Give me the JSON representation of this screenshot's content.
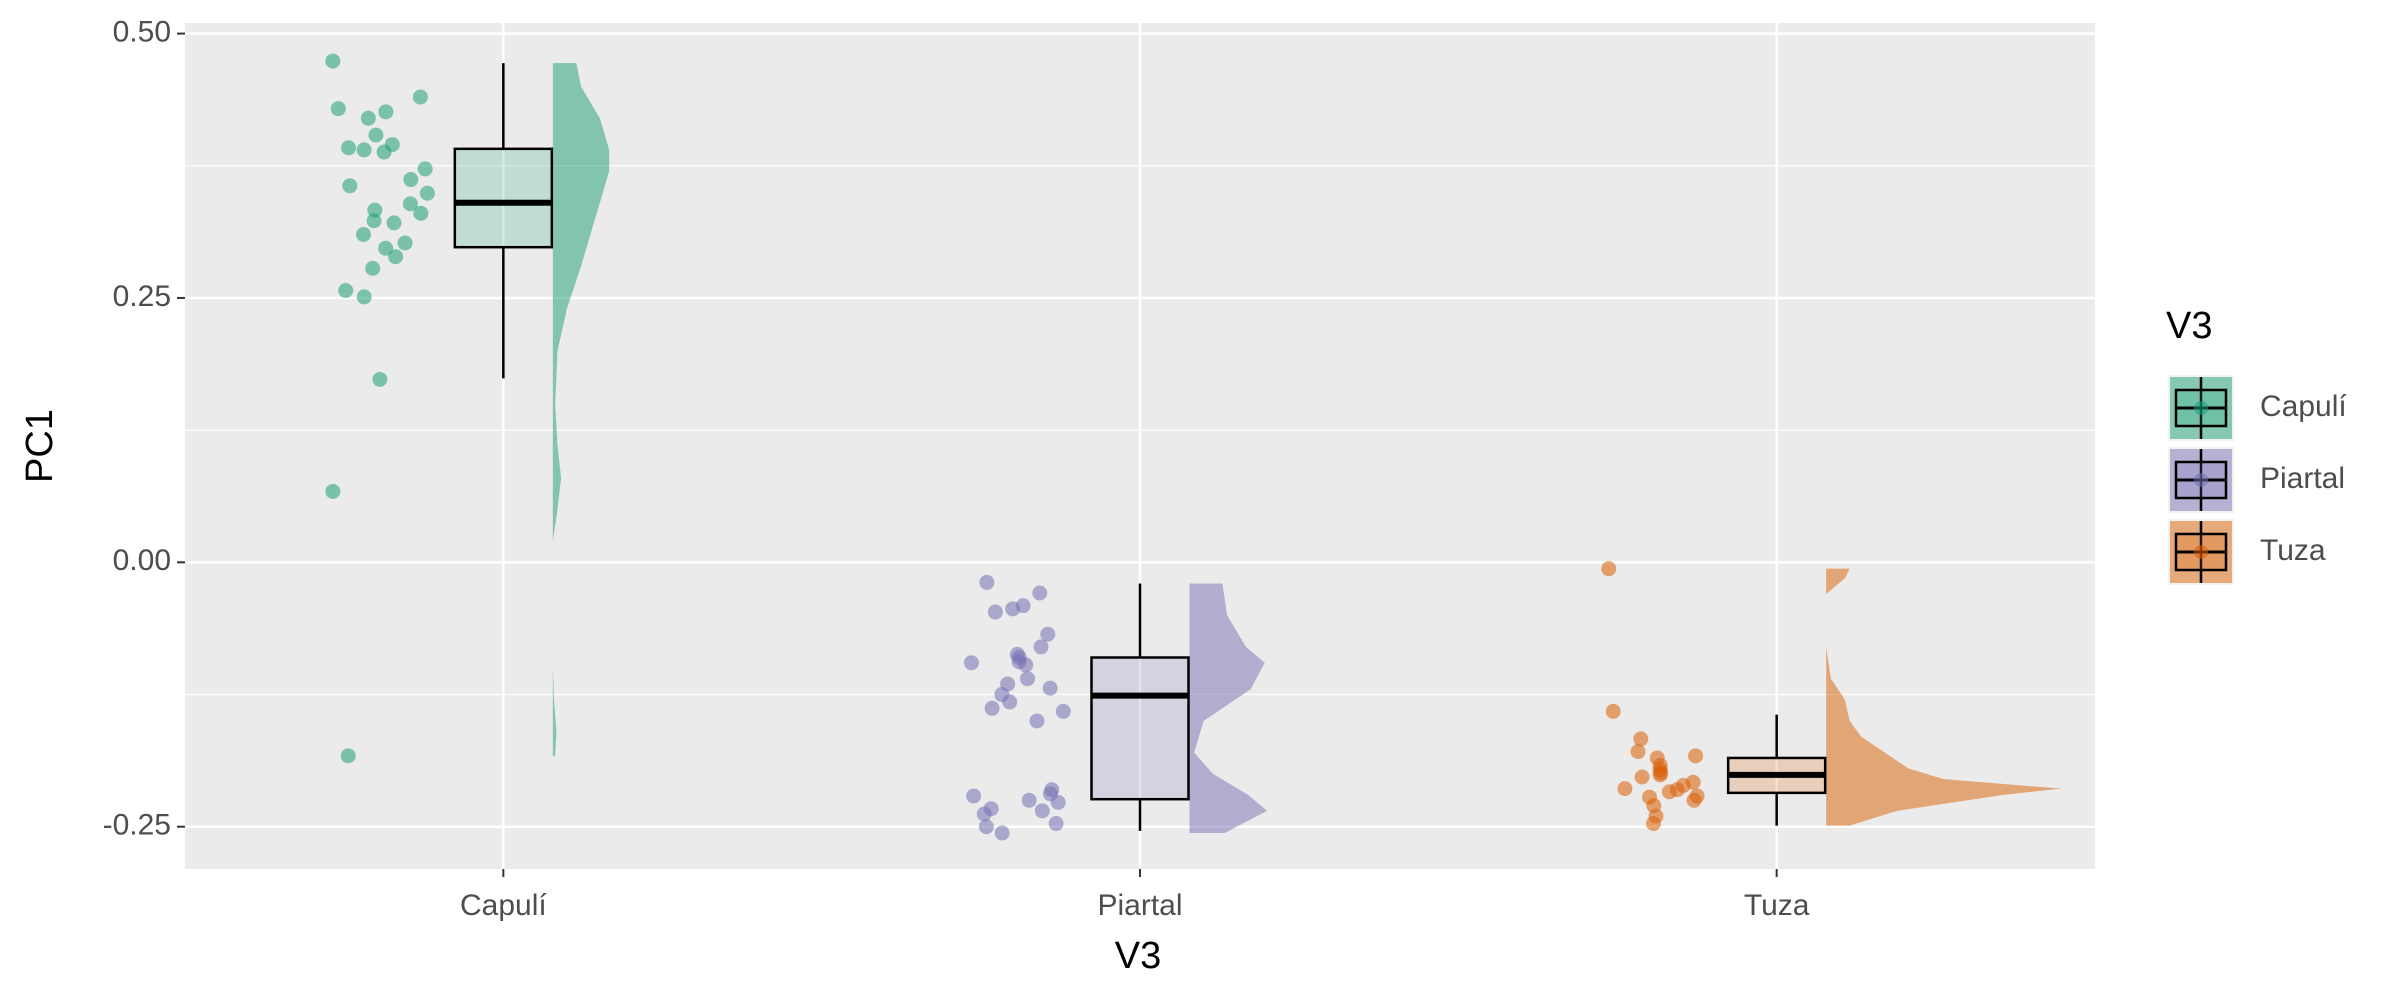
{
  "chart_data": {
    "type": "raincloud",
    "x_label": "V3",
    "y_label": "PC1",
    "legend_title": "V3",
    "legend_position": "right",
    "grid": true,
    "categories": [
      "Capulí",
      "Piartal",
      "Tuza"
    ],
    "ylim": [
      -0.29,
      0.51
    ],
    "yticks": [
      {
        "value": 0.5,
        "label": "0.50"
      },
      0.25,
      {
        "value": 0,
        "label": "0.00"
      },
      -0.25
    ],
    "y_minor_ticks": [
      0.375,
      0.125,
      -0.125
    ],
    "series": [
      {
        "name": "Capulí",
        "color": "#1B9E77",
        "points": [
          0.474,
          0.44,
          0.429,
          0.426,
          0.42,
          0.404,
          0.395,
          0.392,
          0.39,
          0.388,
          0.372,
          0.362,
          0.356,
          0.349,
          0.339,
          0.333,
          0.33,
          0.323,
          0.321,
          0.31,
          0.302,
          0.297,
          0.289,
          0.278,
          0.257,
          0.251,
          0.173,
          0.067,
          -0.183
        ],
        "box": {
          "min": 0.174,
          "q1": 0.298,
          "median": 0.34,
          "q3": 0.391,
          "max": 0.472
        },
        "density": {
          "y": [
            -0.183,
            -0.16,
            -0.13,
            -0.1,
            0.02,
            0.05,
            0.08,
            0.11,
            0.15,
            0.2,
            0.24,
            0.28,
            0.31,
            0.34,
            0.37,
            0.39,
            0.42,
            0.45,
            0.472
          ],
          "width": [
            0.01,
            0.015,
            0.005,
            0,
            0,
            0.02,
            0.035,
            0.02,
            0.01,
            0.02,
            0.06,
            0.12,
            0.16,
            0.2,
            0.24,
            0.24,
            0.2,
            0.12,
            0.1
          ]
        }
      },
      {
        "name": "Piartal",
        "color": "#7570B3",
        "points": [
          -0.019,
          -0.029,
          -0.041,
          -0.044,
          -0.047,
          -0.068,
          -0.08,
          -0.087,
          -0.09,
          -0.094,
          -0.095,
          -0.097,
          -0.11,
          -0.115,
          -0.119,
          -0.125,
          -0.132,
          -0.138,
          -0.141,
          -0.15,
          -0.215,
          -0.219,
          -0.221,
          -0.225,
          -0.227,
          -0.233,
          -0.235,
          -0.238,
          -0.247,
          -0.25,
          -0.256
        ],
        "box": {
          "min": -0.254,
          "q1": -0.224,
          "median": -0.126,
          "q3": -0.09,
          "max": -0.02
        },
        "density": {
          "y": [
            -0.256,
            -0.25,
            -0.235,
            -0.22,
            -0.2,
            -0.18,
            -0.15,
            -0.12,
            -0.095,
            -0.08,
            -0.05,
            -0.02
          ],
          "width": [
            0.15,
            0.2,
            0.33,
            0.25,
            0.1,
            0.02,
            0.06,
            0.26,
            0.32,
            0.24,
            0.16,
            0.14
          ]
        }
      },
      {
        "name": "Tuza",
        "color": "#D95F02",
        "points": [
          -0.006,
          -0.141,
          -0.167,
          -0.179,
          -0.183,
          -0.185,
          -0.192,
          -0.196,
          -0.199,
          -0.201,
          -0.203,
          -0.208,
          -0.211,
          -0.214,
          -0.215,
          -0.217,
          -0.221,
          -0.222,
          -0.225,
          -0.23,
          -0.24,
          -0.247
        ],
        "box": {
          "min": -0.249,
          "q1": -0.218,
          "median": -0.201,
          "q3": -0.185,
          "max": -0.144
        },
        "density": {
          "y": [
            -0.249,
            -0.235,
            -0.22,
            -0.214,
            -0.205,
            -0.195,
            -0.18,
            -0.165,
            -0.15,
            -0.13,
            -0.11,
            -0.08,
            -0.03,
            -0.015,
            -0.006
          ],
          "width": [
            0.1,
            0.3,
            0.75,
            1.0,
            0.5,
            0.35,
            0.25,
            0.15,
            0.1,
            0.08,
            0.02,
            0,
            0,
            0.08,
            0.1
          ]
        }
      }
    ]
  }
}
